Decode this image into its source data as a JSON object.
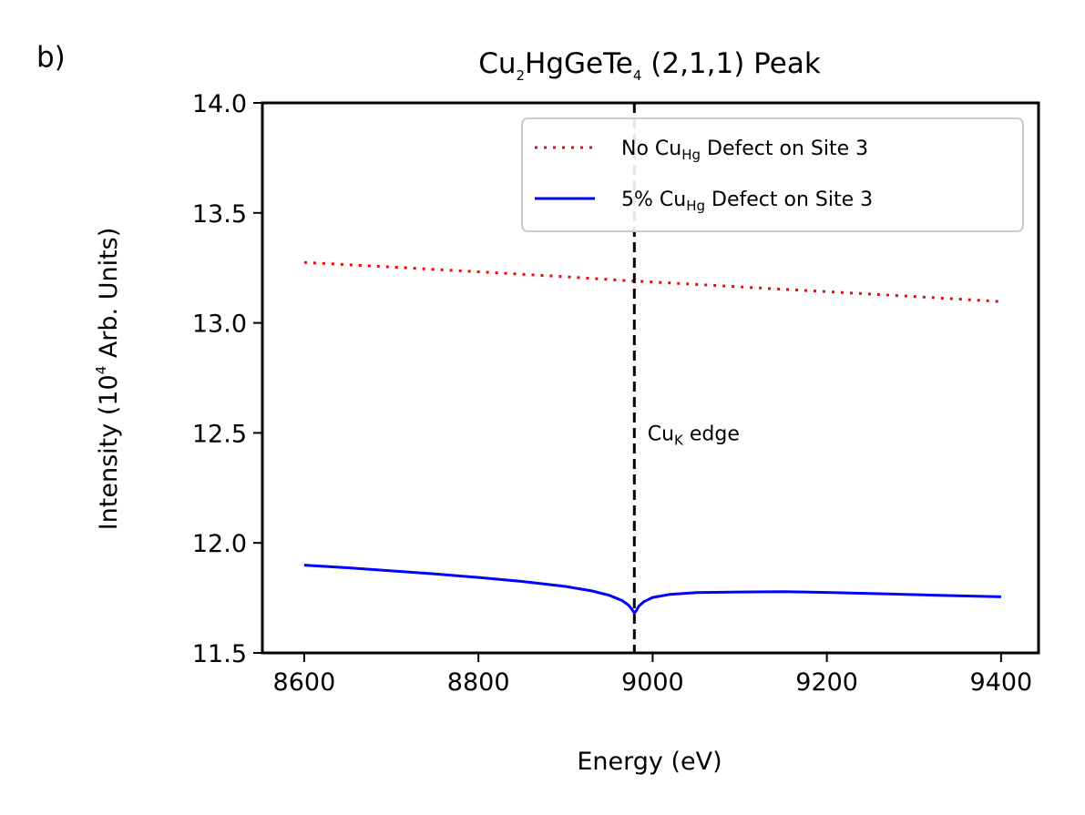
{
  "panel_label": "b)",
  "chart_data": {
    "type": "line",
    "title": {
      "pre": "Cu",
      "sub1": "2",
      "mid": "HgGeTe",
      "sub2": "4",
      "post": " (2,1,1) Peak"
    },
    "xlabel": "Energy (eV)",
    "ylabel": {
      "pre": "Intensity (10",
      "sup": "4",
      "post": " Arb. Units)"
    },
    "xlim": [
      8552,
      9443
    ],
    "ylim": [
      11.5,
      14.0
    ],
    "xticks": [
      8600,
      8800,
      9000,
      9200,
      9400
    ],
    "yticks": [
      11.5,
      12.0,
      12.5,
      13.0,
      13.5,
      14.0
    ],
    "xtick_labels": [
      "8600",
      "8800",
      "9000",
      "9200",
      "9400"
    ],
    "ytick_labels": [
      "11.5",
      "12.0",
      "12.5",
      "13.0",
      "13.5",
      "14.0"
    ],
    "series": [
      {
        "name": "No Cu_Hg Defect on Site 3",
        "legend": {
          "pre": "No Cu",
          "sub": "Hg",
          "post": " Defect on Site 3"
        },
        "color": "#ff0000",
        "style": "dotted",
        "x": [
          8600,
          8700,
          8800,
          8900,
          8980,
          9000,
          9100,
          9200,
          9300,
          9400
        ],
        "values": [
          13.275,
          13.254,
          13.232,
          13.21,
          13.19,
          13.186,
          13.164,
          13.142,
          13.12,
          13.097
        ]
      },
      {
        "name": "5% Cu_Hg Defect on Site 3",
        "legend": {
          "pre": "5%  Cu",
          "sub": "Hg",
          "post": " Defect on Site 3"
        },
        "color": "#0000ff",
        "style": "solid",
        "x": [
          8600,
          8650,
          8700,
          8750,
          8800,
          8850,
          8900,
          8930,
          8950,
          8965,
          8972,
          8976,
          8979,
          8981,
          8984,
          8990,
          9000,
          9020,
          9050,
          9100,
          9150,
          9200,
          9250,
          9300,
          9350,
          9400
        ],
        "values": [
          11.899,
          11.887,
          11.873,
          11.859,
          11.843,
          11.825,
          11.802,
          11.782,
          11.762,
          11.738,
          11.718,
          11.7,
          11.682,
          11.69,
          11.712,
          11.733,
          11.752,
          11.766,
          11.774,
          11.777,
          11.778,
          11.775,
          11.77,
          11.765,
          11.76,
          11.755
        ]
      }
    ],
    "vline": {
      "x": 8979,
      "color": "#000000",
      "style": "dashed"
    },
    "annotation": {
      "pre": "Cu",
      "sub": "K",
      "post": " edge",
      "x": 8992,
      "y": 12.5
    },
    "legend_position": "top-right"
  }
}
